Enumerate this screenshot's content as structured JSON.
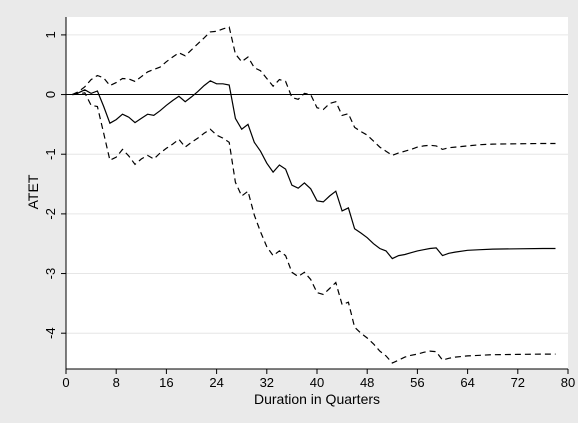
{
  "chart_data": {
    "type": "line",
    "xlabel": "Duration in Quarters",
    "ylabel": "ATET",
    "xlim": [
      0,
      80
    ],
    "ylim": [
      -4.6,
      1.3
    ],
    "xticks": [
      0,
      8,
      16,
      24,
      32,
      40,
      48,
      56,
      64,
      72,
      80
    ],
    "yticks": [
      1,
      0,
      -1,
      -2,
      -3,
      -4
    ],
    "grid": "horizontal",
    "reference_line": 0,
    "legend": "none",
    "series": [
      {
        "style": "solid",
        "color": "#000000",
        "points": [
          [
            1,
            0
          ],
          [
            2,
            0.03
          ],
          [
            3,
            0.08
          ],
          [
            4,
            0.02
          ],
          [
            5,
            0.06
          ],
          [
            6,
            -0.2
          ],
          [
            7,
            -0.48
          ],
          [
            8,
            -0.42
          ],
          [
            9,
            -0.33
          ],
          [
            10,
            -0.38
          ],
          [
            11,
            -0.47
          ],
          [
            12,
            -0.4
          ],
          [
            13,
            -0.33
          ],
          [
            14,
            -0.35
          ],
          [
            15,
            -0.27
          ],
          [
            16,
            -0.18
          ],
          [
            17,
            -0.1
          ],
          [
            18,
            -0.03
          ],
          [
            19,
            -0.12
          ],
          [
            20,
            -0.04
          ],
          [
            21,
            0.05
          ],
          [
            22,
            0.15
          ],
          [
            23,
            0.23
          ],
          [
            24,
            0.18
          ],
          [
            25,
            0.18
          ],
          [
            26,
            0.16
          ],
          [
            27,
            -0.4
          ],
          [
            28,
            -0.58
          ],
          [
            29,
            -0.5
          ],
          [
            30,
            -0.8
          ],
          [
            31,
            -0.95
          ],
          [
            32,
            -1.15
          ],
          [
            33,
            -1.3
          ],
          [
            34,
            -1.18
          ],
          [
            35,
            -1.25
          ],
          [
            36,
            -1.52
          ],
          [
            37,
            -1.57
          ],
          [
            38,
            -1.48
          ],
          [
            39,
            -1.58
          ],
          [
            40,
            -1.78
          ],
          [
            41,
            -1.8
          ],
          [
            42,
            -1.7
          ],
          [
            43,
            -1.62
          ],
          [
            44,
            -1.95
          ],
          [
            45,
            -1.9
          ],
          [
            46,
            -2.25
          ],
          [
            47,
            -2.32
          ],
          [
            48,
            -2.4
          ],
          [
            49,
            -2.5
          ],
          [
            50,
            -2.58
          ],
          [
            51,
            -2.62
          ],
          [
            52,
            -2.75
          ],
          [
            53,
            -2.7
          ],
          [
            54,
            -2.68
          ],
          [
            55,
            -2.65
          ],
          [
            56,
            -2.62
          ],
          [
            57,
            -2.6
          ],
          [
            58,
            -2.58
          ],
          [
            59,
            -2.57
          ],
          [
            60,
            -2.7
          ],
          [
            61,
            -2.66
          ],
          [
            62,
            -2.64
          ],
          [
            64,
            -2.61
          ],
          [
            66,
            -2.6
          ],
          [
            68,
            -2.59
          ],
          [
            72,
            -2.585
          ],
          [
            76,
            -2.58
          ],
          [
            78,
            -2.58
          ]
        ]
      },
      {
        "style": "dashed",
        "color": "#000000",
        "points": [
          [
            1,
            0
          ],
          [
            2,
            0.05
          ],
          [
            3,
            0.13
          ],
          [
            4,
            0.25
          ],
          [
            5,
            0.32
          ],
          [
            6,
            0.28
          ],
          [
            7,
            0.15
          ],
          [
            8,
            0.2
          ],
          [
            9,
            0.27
          ],
          [
            10,
            0.26
          ],
          [
            11,
            0.22
          ],
          [
            12,
            0.3
          ],
          [
            13,
            0.38
          ],
          [
            14,
            0.42
          ],
          [
            15,
            0.46
          ],
          [
            16,
            0.55
          ],
          [
            17,
            0.63
          ],
          [
            18,
            0.7
          ],
          [
            19,
            0.65
          ],
          [
            20,
            0.75
          ],
          [
            21,
            0.85
          ],
          [
            22,
            0.95
          ],
          [
            23,
            1.05
          ],
          [
            24,
            1.06
          ],
          [
            25,
            1.1
          ],
          [
            26,
            1.13
          ],
          [
            27,
            0.68
          ],
          [
            28,
            0.55
          ],
          [
            29,
            0.63
          ],
          [
            30,
            0.45
          ],
          [
            31,
            0.4
          ],
          [
            32,
            0.27
          ],
          [
            33,
            0.14
          ],
          [
            34,
            0.25
          ],
          [
            35,
            0.22
          ],
          [
            36,
            -0.05
          ],
          [
            37,
            -0.08
          ],
          [
            38,
            0.02
          ],
          [
            39,
            0.0
          ],
          [
            40,
            -0.22
          ],
          [
            41,
            -0.25
          ],
          [
            42,
            -0.15
          ],
          [
            43,
            -0.12
          ],
          [
            44,
            -0.35
          ],
          [
            45,
            -0.32
          ],
          [
            46,
            -0.55
          ],
          [
            47,
            -0.62
          ],
          [
            48,
            -0.68
          ],
          [
            49,
            -0.78
          ],
          [
            50,
            -0.88
          ],
          [
            51,
            -0.95
          ],
          [
            52,
            -1.02
          ],
          [
            53,
            -0.98
          ],
          [
            54,
            -0.95
          ],
          [
            55,
            -0.92
          ],
          [
            56,
            -0.88
          ],
          [
            57,
            -0.86
          ],
          [
            58,
            -0.85
          ],
          [
            59,
            -0.86
          ],
          [
            60,
            -0.92
          ],
          [
            61,
            -0.89
          ],
          [
            62,
            -0.88
          ],
          [
            64,
            -0.86
          ],
          [
            66,
            -0.84
          ],
          [
            68,
            -0.83
          ],
          [
            72,
            -0.825
          ],
          [
            76,
            -0.82
          ],
          [
            78,
            -0.82
          ]
        ]
      },
      {
        "style": "dashed",
        "color": "#000000",
        "points": [
          [
            1,
            0
          ],
          [
            2,
            0.01
          ],
          [
            3,
            0.03
          ],
          [
            4,
            -0.18
          ],
          [
            5,
            -0.2
          ],
          [
            6,
            -0.65
          ],
          [
            7,
            -1.1
          ],
          [
            8,
            -1.05
          ],
          [
            9,
            -0.92
          ],
          [
            10,
            -1.03
          ],
          [
            11,
            -1.17
          ],
          [
            12,
            -1.08
          ],
          [
            13,
            -1.02
          ],
          [
            14,
            -1.08
          ],
          [
            15,
            -0.98
          ],
          [
            16,
            -0.9
          ],
          [
            17,
            -0.83
          ],
          [
            18,
            -0.75
          ],
          [
            19,
            -0.88
          ],
          [
            20,
            -0.8
          ],
          [
            21,
            -0.73
          ],
          [
            22,
            -0.65
          ],
          [
            23,
            -0.58
          ],
          [
            24,
            -0.68
          ],
          [
            25,
            -0.73
          ],
          [
            26,
            -0.8
          ],
          [
            27,
            -1.47
          ],
          [
            28,
            -1.7
          ],
          [
            29,
            -1.62
          ],
          [
            30,
            -2.02
          ],
          [
            31,
            -2.3
          ],
          [
            32,
            -2.55
          ],
          [
            33,
            -2.7
          ],
          [
            34,
            -2.62
          ],
          [
            35,
            -2.7
          ],
          [
            36,
            -2.98
          ],
          [
            37,
            -3.05
          ],
          [
            38,
            -2.98
          ],
          [
            39,
            -3.1
          ],
          [
            40,
            -3.32
          ],
          [
            41,
            -3.35
          ],
          [
            42,
            -3.25
          ],
          [
            43,
            -3.15
          ],
          [
            44,
            -3.52
          ],
          [
            45,
            -3.48
          ],
          [
            46,
            -3.9
          ],
          [
            47,
            -4.0
          ],
          [
            48,
            -4.08
          ],
          [
            49,
            -4.18
          ],
          [
            50,
            -4.3
          ],
          [
            51,
            -4.38
          ],
          [
            52,
            -4.5
          ],
          [
            53,
            -4.45
          ],
          [
            54,
            -4.4
          ],
          [
            55,
            -4.37
          ],
          [
            56,
            -4.35
          ],
          [
            57,
            -4.32
          ],
          [
            58,
            -4.3
          ],
          [
            59,
            -4.31
          ],
          [
            60,
            -4.45
          ],
          [
            61,
            -4.42
          ],
          [
            62,
            -4.4
          ],
          [
            64,
            -4.38
          ],
          [
            66,
            -4.37
          ],
          [
            68,
            -4.36
          ],
          [
            72,
            -4.355
          ],
          [
            76,
            -4.35
          ],
          [
            78,
            -4.35
          ]
        ]
      }
    ]
  }
}
